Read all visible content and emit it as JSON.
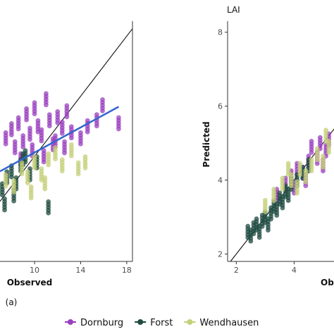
{
  "legend": {
    "items": [
      {
        "name": "Dornburg",
        "color": "#9a3fbf"
      },
      {
        "name": "Forst",
        "color": "#1f4b40"
      },
      {
        "name": "Wendhausen",
        "color": "#c5d07a"
      }
    ]
  },
  "chart_data": [
    {
      "type": "scatter",
      "panel_label": "(a)",
      "title": "",
      "xlabel": "Observed",
      "ylabel": "",
      "xlim": [
        7,
        18.5
      ],
      "ylim": [
        3,
        19
      ],
      "x_ticks": [
        10,
        14,
        18
      ],
      "x_tick_labels": [
        "10",
        "14",
        "18"
      ],
      "grid": false,
      "identity_line": true,
      "fit_line": {
        "color": "#3366cc",
        "x": [
          7,
          17.3
        ],
        "y": [
          9.0,
          13.3
        ]
      },
      "series": [
        {
          "name": "Dornburg",
          "color": "#9a3fbf",
          "x": [
            7.5,
            8.0,
            8.3,
            8.6,
            9.0,
            9.3,
            9.6,
            10.0,
            10.3,
            10.6,
            11.0,
            11.3,
            11.6,
            12.0,
            12.4,
            12.8,
            13.2,
            14.0,
            14.6,
            15.4,
            15.9,
            17.3,
            8.8,
            9.8,
            10.8,
            11.8,
            12.6
          ],
          "y": [
            11.2,
            11.8,
            10.6,
            12.2,
            11.0,
            12.8,
            11.5,
            13.2,
            12.0,
            11.4,
            13.8,
            12.4,
            10.8,
            12.6,
            11.9,
            13.0,
            11.6,
            11.2,
            12.0,
            12.4,
            13.4,
            12.2,
            9.8,
            10.4,
            10.0,
            11.0,
            10.6
          ]
        },
        {
          "name": "Forst",
          "color": "#1f4b40",
          "x": [
            7.2,
            7.6,
            8.0,
            8.4,
            8.8,
            9.2,
            9.6,
            10.2,
            11.2,
            7.4,
            8.2,
            9.0
          ],
          "y": [
            7.8,
            8.6,
            9.0,
            8.2,
            9.4,
            10.0,
            8.8,
            9.6,
            6.6,
            6.8,
            7.4,
            9.8
          ]
        },
        {
          "name": "Wendhausen",
          "color": "#c5d07a",
          "x": [
            7.5,
            8.2,
            8.9,
            9.4,
            10.0,
            10.6,
            11.2,
            11.8,
            12.4,
            13.2,
            13.8,
            14.4,
            9.7,
            10.9
          ],
          "y": [
            8.4,
            8.0,
            9.2,
            8.6,
            9.6,
            8.8,
            9.8,
            10.2,
            9.4,
            10.4,
            9.2,
            9.6,
            7.6,
            8.2
          ]
        }
      ]
    },
    {
      "type": "scatter",
      "title": "LAI",
      "xlabel": "Observed",
      "ylabel": "Predicted",
      "xlim": [
        1.7,
        6.5
      ],
      "ylim": [
        1.8,
        8.3
      ],
      "x_ticks": [
        2,
        4
      ],
      "x_tick_labels": [
        "2",
        "4"
      ],
      "y_ticks": [
        2,
        4,
        6,
        8
      ],
      "y_tick_labels": [
        "2",
        "4",
        "6",
        "8"
      ],
      "grid": false,
      "identity_line": true,
      "series": [
        {
          "name": "Dornburg",
          "color": "#9a3fbf",
          "x": [
            3.4,
            3.7,
            3.9,
            4.1,
            4.3,
            4.5,
            4.6,
            4.8,
            4.9,
            5.0,
            5.1,
            5.2,
            4.0,
            4.4
          ],
          "y": [
            3.6,
            3.9,
            4.1,
            4.3,
            4.2,
            4.5,
            4.9,
            4.6,
            5.0,
            4.4,
            4.8,
            5.1,
            3.8,
            4.0
          ]
        },
        {
          "name": "Forst",
          "color": "#1f4b40",
          "x": [
            2.4,
            2.5,
            2.6,
            2.7,
            2.8,
            2.9,
            3.0,
            3.1,
            3.2,
            3.3,
            3.4,
            3.5,
            3.6,
            3.7,
            3.8,
            3.9,
            4.1,
            4.3,
            4.5
          ],
          "y": [
            2.6,
            2.5,
            2.7,
            2.8,
            2.6,
            2.9,
            3.0,
            2.8,
            3.1,
            3.3,
            3.2,
            3.5,
            3.4,
            3.7,
            3.6,
            3.9,
            4.0,
            4.2,
            4.4
          ]
        },
        {
          "name": "Wendhausen",
          "color": "#c5d07a",
          "x": [
            3.0,
            3.3,
            3.6,
            3.9,
            4.2,
            4.4,
            4.6,
            4.8,
            5.0,
            5.1,
            5.2,
            3.8,
            4.1
          ],
          "y": [
            3.3,
            3.6,
            3.9,
            4.0,
            4.3,
            4.1,
            4.4,
            4.7,
            4.5,
            5.2,
            4.9,
            4.3,
            3.8
          ]
        }
      ]
    }
  ]
}
